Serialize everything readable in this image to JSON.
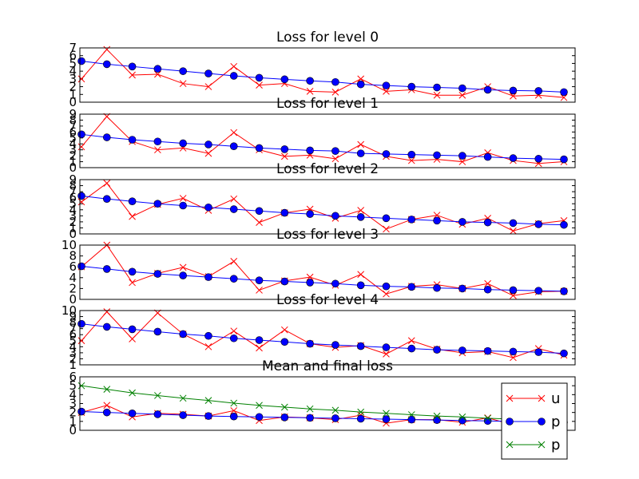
{
  "chart_data": [
    {
      "type": "line",
      "title": "Loss for level 0",
      "ylim": [
        0,
        7
      ],
      "yticks": [
        "0",
        "1",
        "2",
        "3",
        "4",
        "5",
        "6",
        "7"
      ],
      "x": [
        0,
        1,
        2,
        3,
        4,
        5,
        6,
        7,
        8,
        9,
        10,
        11,
        12,
        13,
        14,
        15,
        16,
        17,
        18,
        19
      ],
      "series": [
        {
          "marker": "x",
          "color": "#ff0000",
          "values": [
            3.0,
            6.8,
            3.5,
            3.6,
            2.4,
            2.0,
            4.6,
            2.2,
            2.4,
            1.4,
            1.3,
            3.0,
            1.4,
            1.6,
            0.9,
            0.9,
            2.0,
            0.8,
            0.9,
            0.6
          ]
        },
        {
          "marker": "o",
          "color": "#0000ff",
          "values": [
            5.3,
            4.9,
            4.6,
            4.3,
            4.0,
            3.7,
            3.4,
            3.15,
            2.95,
            2.75,
            2.6,
            2.3,
            2.15,
            2.0,
            1.9,
            1.8,
            1.6,
            1.5,
            1.45,
            1.3
          ]
        }
      ]
    },
    {
      "type": "line",
      "title": "Loss for level 1",
      "ylim": [
        0,
        9
      ],
      "yticks": [
        "0",
        "1",
        "2",
        "3",
        "4",
        "5",
        "6",
        "7",
        "8",
        "9"
      ],
      "x": [
        0,
        1,
        2,
        3,
        4,
        5,
        6,
        7,
        8,
        9,
        10,
        11,
        12,
        13,
        14,
        15,
        16,
        17,
        18,
        19
      ],
      "series": [
        {
          "marker": "x",
          "color": "#ff0000",
          "values": [
            3.5,
            8.6,
            4.4,
            3.0,
            3.3,
            2.4,
            5.9,
            3.0,
            1.9,
            2.1,
            1.5,
            3.9,
            1.9,
            1.2,
            1.4,
            1.0,
            2.5,
            1.2,
            0.7,
            1.0
          ]
        },
        {
          "marker": "o",
          "color": "#0000ff",
          "values": [
            5.6,
            5.1,
            4.7,
            4.4,
            4.1,
            3.9,
            3.6,
            3.3,
            3.1,
            2.9,
            2.8,
            2.4,
            2.3,
            2.2,
            2.1,
            2.0,
            1.8,
            1.6,
            1.5,
            1.4
          ]
        }
      ]
    },
    {
      "type": "line",
      "title": "Loss for level 2",
      "ylim": [
        0,
        9
      ],
      "yticks": [
        "0",
        "1",
        "2",
        "3",
        "4",
        "5",
        "6",
        "7",
        "8",
        "9"
      ],
      "x": [
        0,
        1,
        2,
        3,
        4,
        5,
        6,
        7,
        8,
        9,
        10,
        11,
        12,
        13,
        14,
        15,
        16,
        17,
        18,
        19
      ],
      "series": [
        {
          "marker": "x",
          "color": "#ff0000",
          "values": [
            5.3,
            8.4,
            2.9,
            4.9,
            5.9,
            3.9,
            5.8,
            1.9,
            3.5,
            4.1,
            2.6,
            3.9,
            0.8,
            2.4,
            3.1,
            1.6,
            2.6,
            0.5,
            1.7,
            2.2
          ]
        },
        {
          "marker": "o",
          "color": "#0000ff",
          "values": [
            6.3,
            5.8,
            5.4,
            5.0,
            4.7,
            4.4,
            4.1,
            3.8,
            3.5,
            3.3,
            3.0,
            2.8,
            2.6,
            2.4,
            2.2,
            2.0,
            1.9,
            1.8,
            1.6,
            1.5
          ]
        }
      ]
    },
    {
      "type": "line",
      "title": "Loss for level 3",
      "ylim": [
        0,
        10
      ],
      "yticks": [
        "0",
        "2",
        "4",
        "6",
        "8",
        "10"
      ],
      "x": [
        0,
        1,
        2,
        3,
        4,
        5,
        6,
        7,
        8,
        9,
        10,
        11,
        12,
        13,
        14,
        15,
        16,
        17,
        18,
        19
      ],
      "series": [
        {
          "marker": "x",
          "color": "#ff0000",
          "values": [
            6.0,
            10.0,
            3.1,
            4.8,
            5.9,
            4.2,
            7.0,
            1.7,
            3.4,
            4.1,
            2.6,
            4.6,
            1.0,
            2.4,
            2.7,
            2.0,
            2.9,
            0.7,
            1.4,
            1.5
          ]
        },
        {
          "marker": "o",
          "color": "#0000ff",
          "values": [
            6.1,
            5.6,
            5.1,
            4.7,
            4.4,
            4.1,
            3.8,
            3.5,
            3.3,
            3.1,
            2.9,
            2.6,
            2.4,
            2.3,
            2.1,
            2.0,
            1.8,
            1.7,
            1.6,
            1.5
          ]
        }
      ]
    },
    {
      "type": "line",
      "title": "Loss for level 4",
      "ylim": [
        1,
        10
      ],
      "yticks": [
        "1",
        "2",
        "3",
        "4",
        "5",
        "6",
        "7",
        "8",
        "9",
        "10"
      ],
      "x": [
        0,
        1,
        2,
        3,
        4,
        5,
        6,
        7,
        8,
        9,
        10,
        11,
        12,
        13,
        14,
        15,
        16,
        17,
        18,
        19
      ],
      "series": [
        {
          "marker": "x",
          "color": "#ff0000",
          "values": [
            5.0,
            9.8,
            5.3,
            9.6,
            6.1,
            4.0,
            6.6,
            3.8,
            6.8,
            4.5,
            3.9,
            4.2,
            2.8,
            5.0,
            3.6,
            3.0,
            3.2,
            2.2,
            3.7,
            2.6
          ]
        },
        {
          "marker": "o",
          "color": "#0000ff",
          "values": [
            7.8,
            7.3,
            6.9,
            6.5,
            6.1,
            5.8,
            5.4,
            5.1,
            4.8,
            4.5,
            4.3,
            4.1,
            3.9,
            3.7,
            3.5,
            3.4,
            3.3,
            3.2,
            3.1,
            2.9
          ]
        }
      ]
    },
    {
      "type": "line",
      "title": "Mean and final loss",
      "ylim": [
        0,
        6
      ],
      "yticks": [
        "0",
        "1",
        "2",
        "3",
        "4",
        "5",
        "6"
      ],
      "legend": {
        "position": "lower-right",
        "labels": [
          "u",
          "p",
          "p"
        ]
      },
      "x": [
        0,
        1,
        2,
        3,
        4,
        5,
        6,
        7,
        8,
        9,
        10,
        11,
        12,
        13,
        14,
        15,
        16,
        17,
        18,
        19
      ],
      "series": [
        {
          "name": "u",
          "marker": "x",
          "color": "#ff0000",
          "values": [
            2.0,
            2.8,
            1.5,
            1.9,
            1.8,
            1.6,
            2.2,
            1.1,
            1.5,
            1.4,
            1.2,
            1.7,
            0.8,
            1.2,
            1.2,
            0.9,
            1.4,
            0.6,
            1.0,
            1.1
          ]
        },
        {
          "name": "p",
          "marker": "o",
          "color": "#0000ff",
          "values": [
            2.1,
            2.0,
            1.9,
            1.8,
            1.7,
            1.6,
            1.55,
            1.5,
            1.45,
            1.4,
            1.35,
            1.3,
            1.25,
            1.2,
            1.15,
            1.1,
            1.05,
            1.0,
            0.95,
            0.9
          ]
        },
        {
          "name": "p",
          "marker": "x",
          "color": "#008000",
          "values": [
            5.0,
            4.6,
            4.2,
            3.9,
            3.6,
            3.35,
            3.05,
            2.8,
            2.6,
            2.4,
            2.25,
            2.05,
            1.9,
            1.75,
            1.6,
            1.5,
            1.35,
            1.25,
            1.15,
            1.05
          ]
        }
      ]
    }
  ]
}
